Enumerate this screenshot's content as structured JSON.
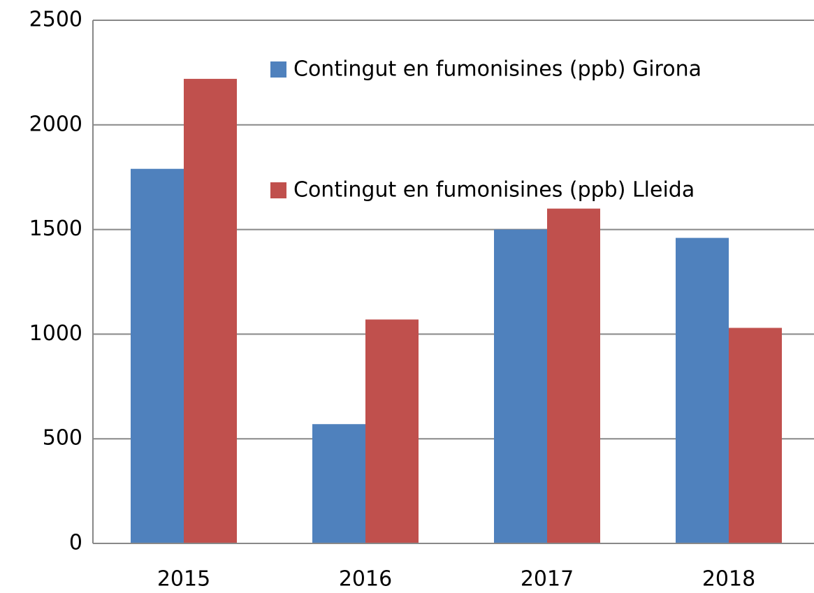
{
  "chart_data": {
    "type": "bar",
    "categories": [
      "2015",
      "2016",
      "2017",
      "2018"
    ],
    "series": [
      {
        "name": "Contingut en fumonisines (ppb) Girona",
        "color": "#4f81bd",
        "values": [
          1790,
          570,
          1500,
          1460
        ]
      },
      {
        "name": "Contingut en fumonisines (ppb) Lleida",
        "color": "#c0504d",
        "values": [
          2220,
          1070,
          1600,
          1030
        ]
      }
    ],
    "ylim": [
      0,
      2500
    ],
    "yticks": [
      0,
      500,
      1000,
      1500,
      2000,
      2500
    ],
    "grid": true
  }
}
